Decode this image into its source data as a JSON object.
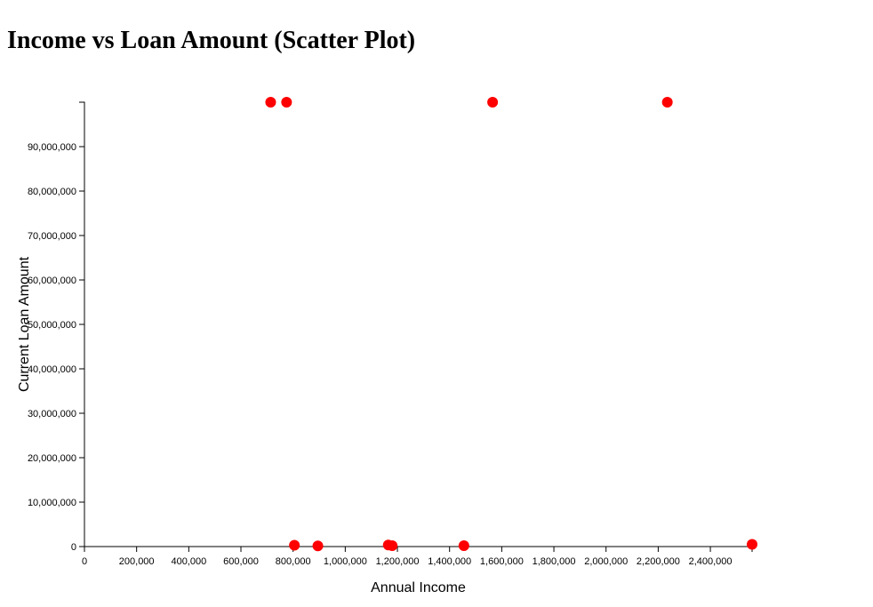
{
  "chart_data": {
    "type": "scatter",
    "title": "Income vs Loan Amount (Scatter Plot)",
    "xlabel": "Annual Income",
    "ylabel": "Current Loan Amount",
    "xlim": [
      0,
      2560000
    ],
    "ylim": [
      0,
      100000000
    ],
    "x_ticks": [
      0,
      200000,
      400000,
      600000,
      800000,
      1000000,
      1200000,
      1400000,
      1600000,
      1800000,
      2000000,
      2200000,
      2400000
    ],
    "x_tick_labels": [
      "0",
      "200,000",
      "400,000",
      "600,000",
      "800,000",
      "1,000,000",
      "1,200,000",
      "1,400,000",
      "1,600,000",
      "1,800,000",
      "2,000,000",
      "2,200,000",
      "2,400,000"
    ],
    "y_ticks": [
      0,
      10000000,
      20000000,
      30000000,
      40000000,
      50000000,
      60000000,
      70000000,
      80000000,
      90000000
    ],
    "y_tick_labels": [
      "0",
      "10,000,000",
      "20,000,000",
      "30,000,000",
      "40,000,000",
      "50,000,000",
      "60,000,000",
      "70,000,000",
      "80,000,000",
      "90,000,000"
    ],
    "grid": false,
    "point_color": "#ff0000",
    "points": [
      {
        "x": 714000,
        "y": 99999999
      },
      {
        "x": 775000,
        "y": 99999999
      },
      {
        "x": 805000,
        "y": 300000
      },
      {
        "x": 895000,
        "y": 150000
      },
      {
        "x": 1165000,
        "y": 350000
      },
      {
        "x": 1180000,
        "y": 200000
      },
      {
        "x": 1455000,
        "y": 200000
      },
      {
        "x": 1565000,
        "y": 99999999
      },
      {
        "x": 2235000,
        "y": 99999999
      },
      {
        "x": 2560000,
        "y": 500000
      }
    ]
  }
}
